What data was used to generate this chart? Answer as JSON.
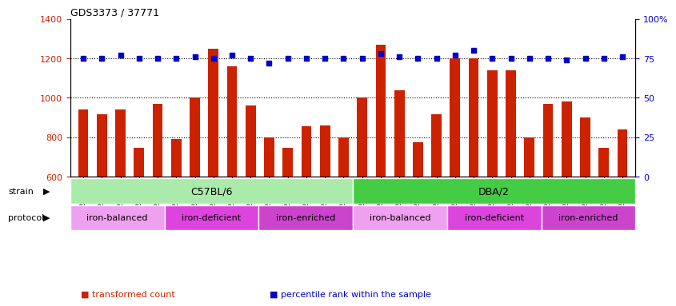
{
  "title": "GDS3373 / 37771",
  "samples": [
    "GSM262762",
    "GSM262765",
    "GSM262768",
    "GSM262769",
    "GSM262770",
    "GSM262796",
    "GSM262797",
    "GSM262798",
    "GSM262799",
    "GSM262800",
    "GSM262771",
    "GSM262772",
    "GSM262773",
    "GSM262794",
    "GSM262795",
    "GSM262817",
    "GSM262819",
    "GSM262820",
    "GSM262839",
    "GSM262840",
    "GSM262950",
    "GSM262951",
    "GSM262952",
    "GSM262953",
    "GSM262954",
    "GSM262841",
    "GSM262842",
    "GSM262843",
    "GSM262844",
    "GSM262845"
  ],
  "bar_values": [
    940,
    915,
    940,
    745,
    970,
    790,
    1000,
    1250,
    1160,
    960,
    800,
    745,
    855,
    860,
    800,
    1000,
    1270,
    1040,
    775,
    915,
    1200,
    1200,
    1140,
    1140,
    800,
    970,
    980,
    900,
    745,
    840
  ],
  "percentile_values": [
    75,
    75,
    77,
    75,
    75,
    75,
    76,
    75,
    77,
    75,
    72,
    75,
    75,
    75,
    75,
    75,
    78,
    76,
    75,
    75,
    77,
    80,
    75,
    75,
    75,
    75,
    74,
    75,
    75,
    76
  ],
  "bar_color": "#cc2200",
  "percentile_color": "#0000cc",
  "ylim_left": [
    600,
    1400
  ],
  "ylim_right": [
    0,
    100
  ],
  "yticks_left": [
    600,
    800,
    1000,
    1200,
    1400
  ],
  "yticks_right": [
    0,
    25,
    50,
    75,
    100
  ],
  "hlines": [
    800,
    1000,
    1200
  ],
  "strain_groups": [
    {
      "label": "C57BL/6",
      "start": 0,
      "end": 15,
      "color": "#aaeaaa"
    },
    {
      "label": "DBA/2",
      "start": 15,
      "end": 30,
      "color": "#44cc44"
    }
  ],
  "protocol_colors": {
    "iron-balanced": "#f0a0f0",
    "iron-deficient": "#dd44dd",
    "iron-enriched": "#cc44cc"
  },
  "protocol_groups": [
    {
      "label": "iron-balanced",
      "start": 0,
      "end": 5
    },
    {
      "label": "iron-deficient",
      "start": 5,
      "end": 10
    },
    {
      "label": "iron-enriched",
      "start": 10,
      "end": 15
    },
    {
      "label": "iron-balanced",
      "start": 15,
      "end": 20
    },
    {
      "label": "iron-deficient",
      "start": 20,
      "end": 25
    },
    {
      "label": "iron-enriched",
      "start": 25,
      "end": 30
    }
  ],
  "legend_items": [
    {
      "label": "transformed count",
      "color": "#cc2200"
    },
    {
      "label": "percentile rank within the sample",
      "color": "#0000cc"
    }
  ],
  "bg_color": "#ffffff",
  "tick_area_color": "#d8d8d8"
}
